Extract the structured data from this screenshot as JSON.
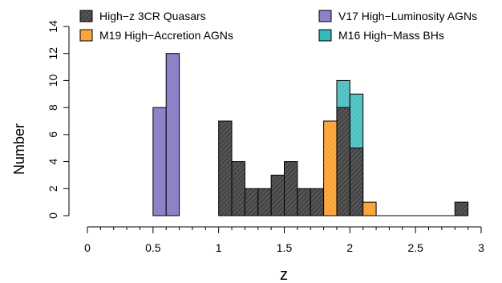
{
  "chart_data": {
    "type": "bar",
    "xlabel": "z",
    "ylabel": "Number",
    "xlim": [
      0,
      3
    ],
    "ylim": [
      0,
      14
    ],
    "bin_width": 0.1,
    "x_ticks": [
      "0",
      "0.5",
      "1",
      "1.5",
      "2",
      "2.5",
      "3"
    ],
    "y_ticks": [
      "0",
      "2",
      "4",
      "6",
      "8",
      "10",
      "12",
      "14"
    ],
    "legend_position": "top",
    "series": [
      {
        "name": "High−z 3CR Quasars",
        "color": "#555555",
        "pattern": "hatched",
        "bins": [
          [
            1.0,
            7
          ],
          [
            1.1,
            4
          ],
          [
            1.2,
            2
          ],
          [
            1.3,
            2
          ],
          [
            1.4,
            3
          ],
          [
            1.5,
            4
          ],
          [
            1.6,
            2
          ],
          [
            1.7,
            2
          ],
          [
            1.9,
            8
          ],
          [
            2.0,
            5
          ],
          [
            2.8,
            1
          ]
        ]
      },
      {
        "name": "M19 High−Accretion AGNs",
        "color": "#ffab45",
        "pattern": "hatched",
        "bins": [
          [
            1.8,
            7
          ],
          [
            2.1,
            1
          ]
        ]
      },
      {
        "name": "V17 High−Luminosity AGNs",
        "color": "#8c82c8",
        "pattern": "solid",
        "bins": [
          [
            0.5,
            8
          ],
          [
            0.6,
            12
          ]
        ]
      },
      {
        "name": "M16 High−Mass BHs",
        "color": "#3bbcc0",
        "pattern": "hatched",
        "bins": [
          [
            1.9,
            10
          ],
          [
            2.0,
            9
          ]
        ]
      }
    ]
  }
}
